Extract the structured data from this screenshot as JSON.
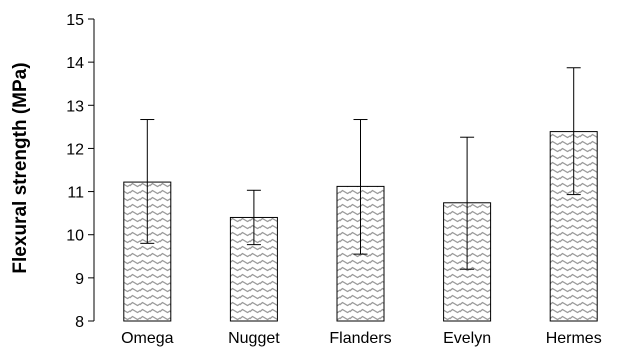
{
  "chart_data": {
    "type": "bar",
    "title": "",
    "xlabel": "",
    "ylabel": "Flexural strength (MPa)",
    "ylim": [
      8,
      15
    ],
    "yticks": [
      8,
      9,
      10,
      11,
      12,
      13,
      14,
      15
    ],
    "categories": [
      "Omega",
      "Nugget",
      "Flanders",
      "Evelyn",
      "Hermes"
    ],
    "values": [
      11.22,
      10.4,
      11.12,
      10.74,
      12.39
    ],
    "error_upper": [
      12.67,
      11.03,
      12.67,
      12.26,
      13.87
    ],
    "error_lower": [
      9.8,
      9.77,
      9.55,
      9.2,
      10.93
    ],
    "grid": false,
    "legend": "none",
    "bar_fill": "zigzag-hatch",
    "colors": {
      "bar_pattern_line": "#9a9a9a",
      "bar_background": "#ffffff",
      "bar_outline": "#000000",
      "axis": "#000000",
      "error_bar": "#000000"
    }
  }
}
